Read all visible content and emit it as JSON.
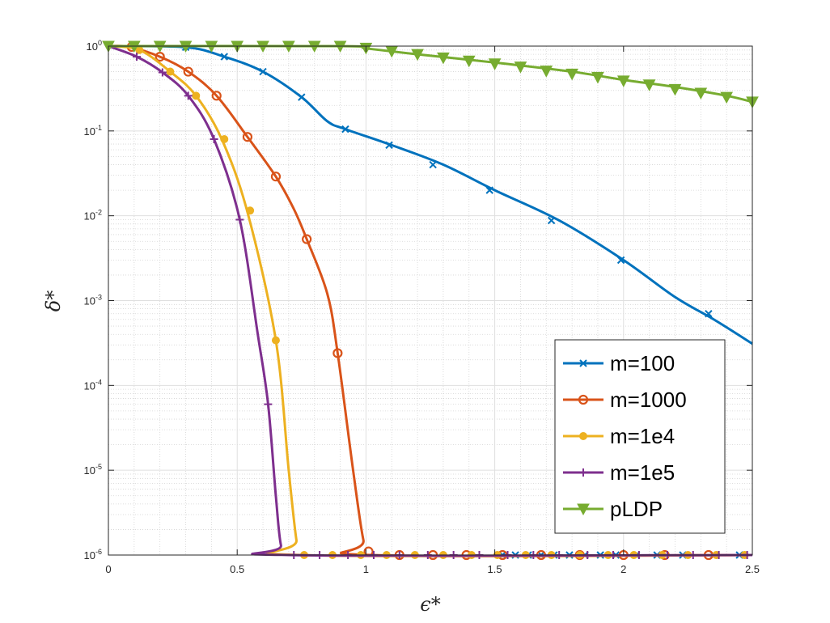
{
  "chart_data": {
    "type": "line",
    "title": "",
    "xlabel": "ϵ*",
    "ylabel": "δ*",
    "xlim": [
      0,
      2.5
    ],
    "ylim": [
      1e-06,
      1
    ],
    "yscale": "log",
    "grid": "on (major and minor)",
    "legend_position": "bottom-right",
    "x_ticks": [
      "0",
      "0.5",
      "1",
      "1.5",
      "2",
      "2.5"
    ],
    "y_ticks": [
      {
        "base": "10",
        "exp": "0"
      },
      {
        "base": "10",
        "exp": "-1"
      },
      {
        "base": "10",
        "exp": "-2"
      },
      {
        "base": "10",
        "exp": "-3"
      },
      {
        "base": "10",
        "exp": "-4"
      },
      {
        "base": "10",
        "exp": "-5"
      },
      {
        "base": "10",
        "exp": "-6"
      }
    ],
    "series": [
      {
        "name": "m=100",
        "color": "#0072BD",
        "marker": "x",
        "curve": [
          [
            0,
            1
          ],
          [
            0.3,
            0.97
          ],
          [
            0.45,
            0.75
          ],
          [
            0.6,
            0.5
          ],
          [
            0.75,
            0.25
          ],
          [
            0.85,
            0.13
          ],
          [
            0.92,
            0.105
          ],
          [
            1.1,
            0.068
          ],
          [
            1.3,
            0.04
          ],
          [
            1.5,
            0.02
          ],
          [
            1.75,
            0.0088
          ],
          [
            2.0,
            0.003
          ],
          [
            2.2,
            0.0011
          ],
          [
            2.35,
            0.0006
          ],
          [
            2.5,
            0.00031
          ]
        ],
        "markers": [
          [
            0.3,
            0.97
          ],
          [
            0.45,
            0.75
          ],
          [
            0.6,
            0.5
          ],
          [
            0.75,
            0.25
          ],
          [
            0.92,
            0.105
          ],
          [
            1.09,
            0.068
          ],
          [
            1.26,
            0.04
          ],
          [
            1.48,
            0.02
          ],
          [
            1.72,
            0.0088
          ],
          [
            1.99,
            0.003
          ],
          [
            2.33,
            0.0007
          ],
          [
            1.53,
            1e-06
          ],
          [
            1.58,
            1e-06
          ],
          [
            1.63,
            1e-06
          ],
          [
            1.68,
            1e-06
          ],
          [
            1.73,
            1e-06
          ],
          [
            1.79,
            1e-06
          ],
          [
            1.85,
            1e-06
          ],
          [
            1.91,
            1e-06
          ],
          [
            1.97,
            1e-06
          ],
          [
            2.05,
            1e-06
          ],
          [
            2.13,
            1e-06
          ],
          [
            2.23,
            1e-06
          ],
          [
            2.35,
            1e-06
          ],
          [
            2.45,
            1e-06
          ]
        ]
      },
      {
        "name": "m=1000",
        "color": "#D95319",
        "marker": "o",
        "curve": [
          [
            0,
            1
          ],
          [
            0.08,
            0.98
          ],
          [
            0.2,
            0.75
          ],
          [
            0.31,
            0.5
          ],
          [
            0.42,
            0.26
          ],
          [
            0.54,
            0.085
          ],
          [
            0.65,
            0.029
          ],
          [
            0.72,
            0.012
          ],
          [
            0.77,
            0.0053
          ],
          [
            0.85,
            0.0012
          ],
          [
            0.89,
            0.00024
          ],
          [
            0.95,
            1e-05
          ],
          [
            0.99,
            1.5e-06
          ],
          [
            1.02,
            1e-06
          ],
          [
            2.5,
            1e-06
          ]
        ],
        "markers": [
          [
            0.09,
            0.98
          ],
          [
            0.2,
            0.75
          ],
          [
            0.31,
            0.5
          ],
          [
            0.42,
            0.26
          ],
          [
            0.54,
            0.085
          ],
          [
            0.65,
            0.029
          ],
          [
            0.77,
            0.0053
          ],
          [
            0.89,
            0.00024
          ],
          [
            1.01,
            1.1e-06
          ],
          [
            1.13,
            1e-06
          ],
          [
            1.26,
            1e-06
          ],
          [
            1.39,
            1e-06
          ],
          [
            1.53,
            1e-06
          ],
          [
            1.68,
            1e-06
          ],
          [
            1.83,
            1e-06
          ],
          [
            2.0,
            1e-06
          ],
          [
            2.16,
            1e-06
          ],
          [
            2.33,
            1e-06
          ]
        ]
      },
      {
        "name": "m=1e4",
        "color": "#EDB120",
        "marker": "•",
        "curve": [
          [
            0,
            1
          ],
          [
            0.12,
            0.9
          ],
          [
            0.24,
            0.5
          ],
          [
            0.34,
            0.26
          ],
          [
            0.44,
            0.08
          ],
          [
            0.54,
            0.011
          ],
          [
            0.65,
            0.00034
          ],
          [
            0.7,
            1e-05
          ],
          [
            0.73,
            1.5e-06
          ],
          [
            0.75,
            1e-06
          ],
          [
            2.5,
            1e-06
          ]
        ],
        "markers": [
          [
            0.12,
            0.9
          ],
          [
            0.24,
            0.5
          ],
          [
            0.34,
            0.26
          ],
          [
            0.45,
            0.08
          ],
          [
            0.55,
            0.0115
          ],
          [
            0.65,
            0.00034
          ],
          [
            0.76,
            1e-06
          ],
          [
            0.87,
            1e-06
          ],
          [
            0.98,
            1e-06
          ],
          [
            1.08,
            1e-06
          ],
          [
            1.19,
            1e-06
          ],
          [
            1.3,
            1e-06
          ],
          [
            1.41,
            1e-06
          ],
          [
            1.51,
            1e-06
          ],
          [
            1.62,
            1e-06
          ],
          [
            1.72,
            1e-06
          ],
          [
            1.83,
            1e-06
          ],
          [
            1.94,
            1e-06
          ],
          [
            2.04,
            1e-06
          ],
          [
            2.15,
            1e-06
          ],
          [
            2.25,
            1e-06
          ],
          [
            2.36,
            1e-06
          ],
          [
            2.47,
            1e-06
          ]
        ]
      },
      {
        "name": "m=1e5",
        "color": "#7E2F8E",
        "marker": "+",
        "curve": [
          [
            0,
            1
          ],
          [
            0.11,
            0.75
          ],
          [
            0.21,
            0.49
          ],
          [
            0.31,
            0.26
          ],
          [
            0.41,
            0.08
          ],
          [
            0.51,
            0.009
          ],
          [
            0.58,
            0.0004
          ],
          [
            0.62,
            6e-05
          ],
          [
            0.65,
            5e-06
          ],
          [
            0.67,
            1.3e-06
          ],
          [
            0.7,
            1e-06
          ],
          [
            2.5,
            1e-06
          ]
        ],
        "markers": [
          [
            0.11,
            0.75
          ],
          [
            0.21,
            0.49
          ],
          [
            0.31,
            0.26
          ],
          [
            0.41,
            0.08
          ],
          [
            0.51,
            0.009
          ],
          [
            0.62,
            6e-05
          ],
          [
            0.72,
            1e-06
          ],
          [
            0.82,
            1e-06
          ],
          [
            0.93,
            1e-06
          ],
          [
            1.03,
            1e-06
          ],
          [
            1.13,
            1e-06
          ],
          [
            1.24,
            1e-06
          ],
          [
            1.34,
            1e-06
          ],
          [
            1.44,
            1e-06
          ],
          [
            1.55,
            1e-06
          ],
          [
            1.65,
            1e-06
          ],
          [
            1.75,
            1e-06
          ],
          [
            1.86,
            1e-06
          ],
          [
            1.96,
            1e-06
          ],
          [
            2.06,
            1e-06
          ],
          [
            2.17,
            1e-06
          ],
          [
            2.27,
            1e-06
          ],
          [
            2.37,
            1e-06
          ],
          [
            2.48,
            1e-06
          ]
        ]
      },
      {
        "name": "pLDP",
        "color": "#77AC30",
        "marker": "▼",
        "curve": [
          [
            0,
            1
          ],
          [
            0.9,
            1.0
          ],
          [
            1.0,
            0.94
          ],
          [
            1.2,
            0.8
          ],
          [
            1.5,
            0.64
          ],
          [
            1.8,
            0.5
          ],
          [
            2.0,
            0.4
          ],
          [
            2.2,
            0.33
          ],
          [
            2.4,
            0.26
          ],
          [
            2.5,
            0.22
          ]
        ],
        "markers": [
          [
            0,
            1
          ],
          [
            0.1,
            1
          ],
          [
            0.2,
            1
          ],
          [
            0.3,
            1
          ],
          [
            0.4,
            1
          ],
          [
            0.5,
            1
          ],
          [
            0.6,
            1
          ],
          [
            0.7,
            1
          ],
          [
            0.8,
            1
          ],
          [
            0.9,
            1
          ],
          [
            1.0,
            0.95
          ],
          [
            1.1,
            0.87
          ],
          [
            1.2,
            0.8
          ],
          [
            1.3,
            0.73
          ],
          [
            1.4,
            0.67
          ],
          [
            1.5,
            0.62
          ],
          [
            1.6,
            0.57
          ],
          [
            1.7,
            0.51
          ],
          [
            1.8,
            0.47
          ],
          [
            1.9,
            0.43
          ],
          [
            2.0,
            0.39
          ],
          [
            2.1,
            0.35
          ],
          [
            2.2,
            0.31
          ],
          [
            2.3,
            0.28
          ],
          [
            2.4,
            0.25
          ],
          [
            2.5,
            0.22
          ]
        ]
      }
    ]
  }
}
